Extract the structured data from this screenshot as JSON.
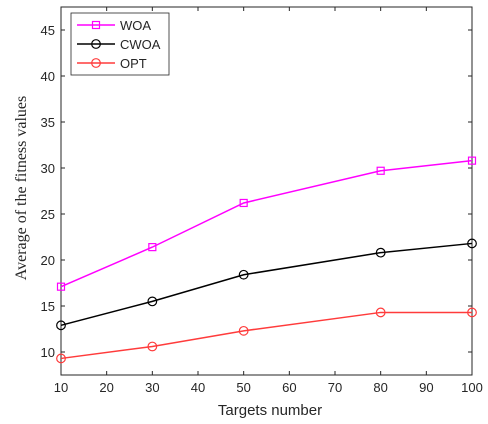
{
  "chart_data": {
    "type": "line",
    "title": "",
    "xlabel": "Targets number",
    "ylabel": "Average of the fitness values",
    "x": [
      10,
      30,
      50,
      80,
      100
    ],
    "xlim": [
      10,
      100
    ],
    "ylim": [
      7.5,
      47.5
    ],
    "xticks": [
      10,
      20,
      30,
      40,
      50,
      60,
      70,
      80,
      90,
      100
    ],
    "yticks": [
      10,
      15,
      20,
      25,
      30,
      35,
      40,
      45
    ],
    "grid": false,
    "legend_position": "top-left",
    "series": [
      {
        "name": "WOA",
        "values": [
          17.1,
          21.4,
          26.2,
          29.7,
          30.8
        ],
        "color": "#ff00ff",
        "marker": "square"
      },
      {
        "name": "CWOA",
        "values": [
          12.9,
          15.5,
          18.4,
          20.8,
          21.8
        ],
        "color": "#000000",
        "marker": "circle"
      },
      {
        "name": "OPT",
        "values": [
          9.3,
          10.6,
          12.3,
          14.3,
          14.3
        ],
        "color": "#ff3b3b",
        "marker": "circle"
      }
    ]
  }
}
